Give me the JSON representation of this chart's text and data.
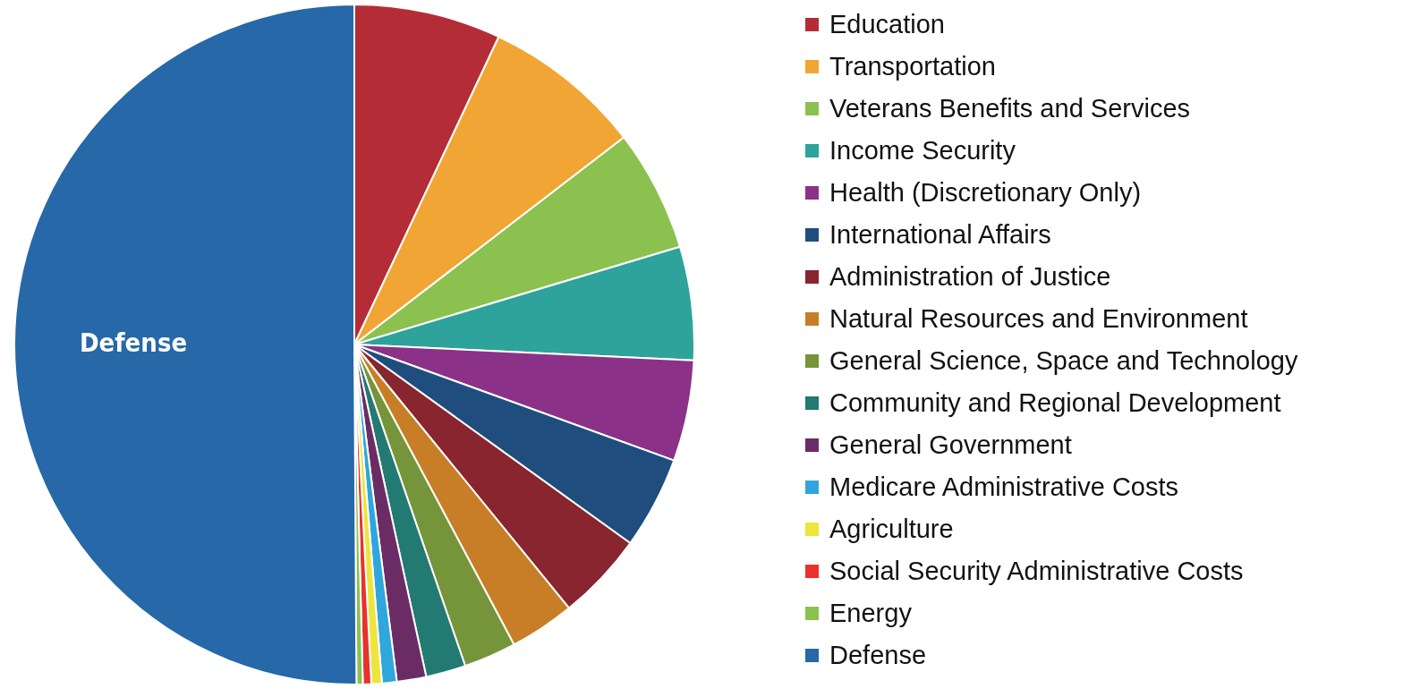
{
  "chart_data": {
    "type": "pie",
    "categories": [
      "Education",
      "Transportation",
      "Veterans Benefits and Services",
      "Income Security",
      "Health (Discretionary Only)",
      "International Affairs",
      "Administration of Justice",
      "Natural Resources and Environment",
      "General Science, Space and Technology",
      "Community and Regional Development",
      "General Government",
      "Medicare Administrative Costs",
      "Agriculture",
      "Social Security Administrative Costs",
      "Energy",
      "Defense"
    ],
    "values": [
      7.0,
      7.6,
      5.8,
      5.4,
      4.8,
      4.4,
      4.2,
      3.1,
      2.5,
      1.9,
      1.4,
      0.7,
      0.5,
      0.4,
      0.3,
      50.2
    ],
    "colors": [
      "#b42d36",
      "#f1a534",
      "#8bc14f",
      "#2ea39b",
      "#8b3288",
      "#1f4e7e",
      "#88252e",
      "#c77e27",
      "#76953a",
      "#237a72",
      "#6b2c66",
      "#2fa6dc",
      "#ece53c",
      "#e8322e",
      "#8bc14f",
      "#2668a8"
    ],
    "annotations": [
      {
        "text": "Defense",
        "x": "Defense"
      }
    ],
    "legend": "right"
  }
}
